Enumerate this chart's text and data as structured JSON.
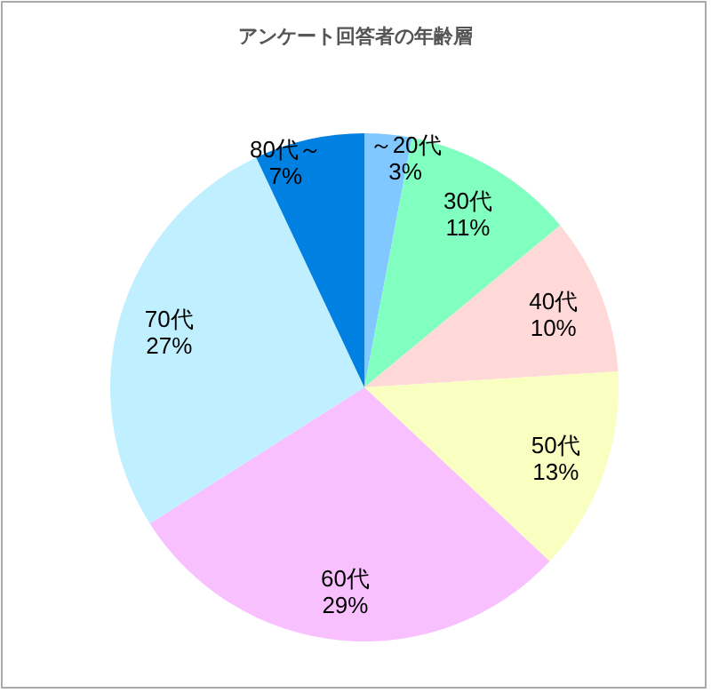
{
  "chart_data": {
    "type": "pie",
    "title": "アンケート回答者の年齢層",
    "categories": [
      "～20代",
      "30代",
      "40代",
      "50代",
      "60代",
      "70代",
      "80代～"
    ],
    "values": [
      3,
      11,
      10,
      13,
      29,
      27,
      7
    ],
    "colors": [
      "#80c8ff",
      "#80ffc0",
      "#ffd8d8",
      "#f8ffc0",
      "#f8c0ff",
      "#c0f0ff",
      "#0080e0"
    ],
    "value_labels": [
      "3%",
      "11%",
      "10%",
      "13%",
      "29%",
      "27%",
      "7%"
    ]
  }
}
